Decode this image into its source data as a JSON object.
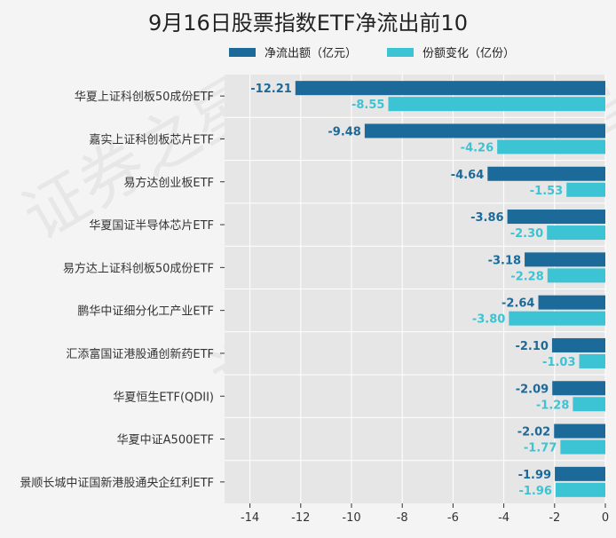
{
  "watermark": "证券之星",
  "colors": {
    "series1": "#1c6a9a",
    "series2": "#3cc3d4",
    "plot_bg": "#e6e6e6",
    "grid": "#ffffff"
  },
  "chart_data": {
    "type": "bar",
    "orientation": "horizontal",
    "title": "9月16日股票指数ETF净流出前10",
    "xlabel": "",
    "ylabel": "",
    "xlim": [
      -15,
      0
    ],
    "xticks": [
      -14,
      -12,
      -10,
      -8,
      -6,
      -4,
      -2,
      0
    ],
    "grid": true,
    "legend": "top",
    "categories": [
      "华夏上证科创板50成份ETF",
      "嘉实上证科创板芯片ETF",
      "易方达创业板ETF",
      "华夏国证半导体芯片ETF",
      "易方达上证科创板50成份ETF",
      "鹏华中证细分化工产业ETF",
      "汇添富国证港股通创新药ETF",
      "华夏恒生ETF(QDII)",
      "华夏中证A500ETF",
      "景顺长城中证国新港股通央企红利ETF"
    ],
    "series": [
      {
        "name": "净流出额（亿元）",
        "values": [
          -12.21,
          -9.48,
          -4.64,
          -3.86,
          -3.18,
          -2.64,
          -2.1,
          -2.09,
          -2.02,
          -1.99
        ]
      },
      {
        "name": "份额变化（亿份）",
        "values": [
          -8.55,
          -4.26,
          -1.53,
          -2.3,
          -2.28,
          -3.8,
          -1.03,
          -1.28,
          -1.77,
          -1.96
        ]
      }
    ]
  }
}
